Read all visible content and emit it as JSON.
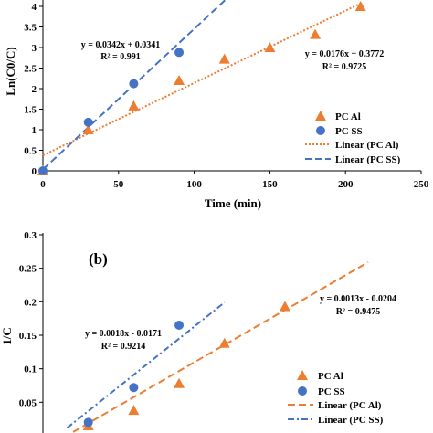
{
  "chart_data": [
    {
      "type": "scatter",
      "panel_label": "",
      "xlabel": "Time (min)",
      "ylabel": "Ln(C0/C)",
      "xlim": [
        0,
        250
      ],
      "ylim": [
        0,
        4
      ],
      "x_ticks": [
        "0",
        "50",
        "100",
        "150",
        "200",
        "250"
      ],
      "y_ticks": [
        "0",
        "0.5",
        "1",
        "1.5",
        "2",
        "2.5",
        "3",
        "3.5",
        "4"
      ],
      "series": [
        {
          "name": "PC Al",
          "marker": "triangle",
          "color": "#ED7D31",
          "x": [
            0,
            30,
            60,
            90,
            120,
            150,
            180,
            210
          ],
          "y": [
            0,
            1.0,
            1.58,
            2.2,
            2.72,
            3.0,
            3.32,
            4.0
          ]
        },
        {
          "name": "PC SS",
          "marker": "circle",
          "color": "#4472C4",
          "x": [
            0,
            30,
            60,
            90
          ],
          "y": [
            0,
            1.18,
            2.12,
            2.88
          ]
        }
      ],
      "trendlines": [
        {
          "name": "Linear (PC Al)",
          "style": "dotted",
          "color": "#ED7D31",
          "slope": 0.0176,
          "intercept": 0.3772,
          "x_range": [
            0,
            210
          ]
        },
        {
          "name": "Linear (PC SS)",
          "style": "dashed",
          "color": "#4472C4",
          "slope": 0.0342,
          "intercept": 0.0341,
          "x_range": [
            0,
            125
          ]
        }
      ],
      "annotations": [
        {
          "equation": "y = 0.0342x + 0.0341",
          "r2": "R² = 0.991"
        },
        {
          "equation": "y = 0.0176x + 0.3772",
          "r2": "R² = 0.9725"
        }
      ],
      "legend": {
        "position": "right",
        "entries": [
          "PC Al",
          "PC SS",
          "Linear (PC Al)",
          "Linear (PC SS)"
        ]
      }
    },
    {
      "type": "scatter",
      "panel_label": "(b)",
      "xlabel": "",
      "ylabel": "1/C",
      "ylim": [
        0,
        0.3
      ],
      "y_ticks": [
        "0.05",
        "0.1",
        "0.15",
        "0.2",
        "0.25",
        "0.3"
      ],
      "series": [
        {
          "name": "PC Al",
          "marker": "triangle",
          "color": "#ED7D31",
          "x": [
            30,
            60,
            90,
            120,
            160
          ],
          "y": [
            0.015,
            0.038,
            0.078,
            0.138,
            0.193
          ]
        },
        {
          "name": "PC SS",
          "marker": "circle",
          "color": "#4472C4",
          "x": [
            30,
            60,
            90
          ],
          "y": [
            0.02,
            0.072,
            0.165
          ]
        }
      ],
      "trendlines": [
        {
          "name": "Linear (PC Al)",
          "style": "dashed",
          "color": "#ED7D31",
          "slope": 0.0013,
          "intercept": -0.0204,
          "x_range": [
            20,
            215
          ]
        },
        {
          "name": "Linear (PC SS)",
          "style": "dashdot",
          "color": "#4472C4",
          "slope": 0.0018,
          "intercept": -0.0171,
          "x_range": [
            16,
            120
          ]
        }
      ],
      "annotations": [
        {
          "equation": "y = 0.0018x - 0.0171",
          "r2": "R² = 0.9214"
        },
        {
          "equation": "y = 0.0013x - 0.0204",
          "r2": "R² = 0.9475"
        }
      ],
      "legend": {
        "position": "bottom-right",
        "entries": [
          "PC Al",
          "PC SS",
          "Linear (PC Al)",
          "Linear (PC SS)"
        ]
      }
    }
  ]
}
